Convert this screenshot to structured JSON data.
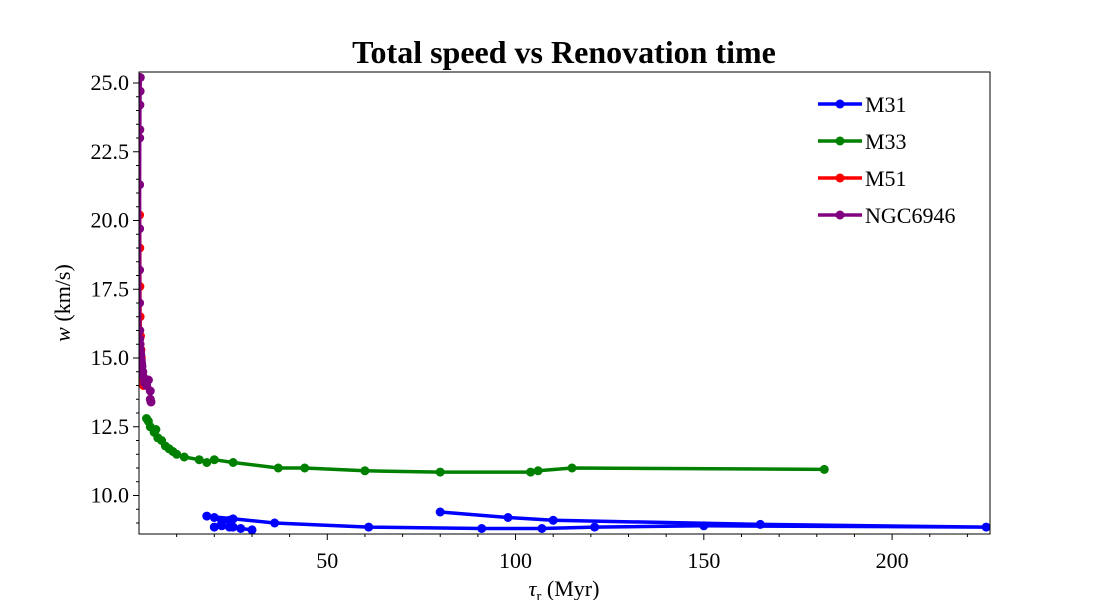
{
  "chart_data": {
    "type": "line",
    "title": "Total speed vs Renovation time",
    "xlabel_symbol": "τ",
    "xlabel_sub": "r",
    "xlabel_unit": " (Myr)",
    "ylabel_symbol": "w",
    "ylabel_unit": " (km/s)",
    "xlim": [
      0,
      226
    ],
    "ylim": [
      8.6,
      25.4
    ],
    "xticks": [
      50,
      100,
      150,
      200
    ],
    "yticks": [
      10.0,
      12.5,
      15.0,
      17.5,
      20.0,
      22.5,
      25.0
    ],
    "xtick_labels": [
      "50",
      "100",
      "150",
      "200"
    ],
    "ytick_labels": [
      "10.0",
      "12.5",
      "15.0",
      "17.5",
      "20.0",
      "22.5",
      "25.0"
    ],
    "legend_position": "top-right",
    "series": [
      {
        "name": "M31",
        "color": "#0000ff",
        "x": [
          30,
          27,
          25,
          24,
          22,
          20,
          22,
          24,
          25,
          20,
          18,
          36,
          61,
          91,
          107,
          121,
          150,
          225,
          165,
          110,
          98,
          80
        ],
        "y": [
          8.75,
          8.8,
          8.85,
          8.85,
          8.9,
          8.85,
          9.05,
          9.1,
          9.15,
          9.2,
          9.25,
          9.0,
          8.85,
          8.8,
          8.8,
          8.85,
          8.9,
          8.85,
          8.95,
          9.1,
          9.2,
          9.4
        ]
      },
      {
        "name": "M33",
        "color": "#008000",
        "x": [
          2,
          2.5,
          3,
          4,
          4.5,
          5,
          6,
          7,
          8,
          9,
          10,
          12,
          16,
          18,
          20,
          25,
          37,
          44,
          60,
          80,
          104,
          106,
          115,
          182
        ],
        "y": [
          12.8,
          12.7,
          12.5,
          12.3,
          12.4,
          12.1,
          12.0,
          11.8,
          11.7,
          11.6,
          11.5,
          11.4,
          11.3,
          11.2,
          11.3,
          11.2,
          11.0,
          11.0,
          10.9,
          10.85,
          10.85,
          10.9,
          11.0,
          10.95
        ]
      },
      {
        "name": "M51",
        "color": "#ff0000",
        "x": [
          0.15,
          0.2,
          0.25,
          0.3,
          0.4,
          0.5,
          0.6,
          0.7,
          0.8,
          0.9,
          1.0,
          1.2
        ],
        "y": [
          20.2,
          19.0,
          17.6,
          16.5,
          15.8,
          15.3,
          15.0,
          14.7,
          14.5,
          14.3,
          14.2,
          14.0
        ]
      },
      {
        "name": "NGC6946",
        "color": "#800080",
        "x": [
          0.35,
          0.3,
          0.25,
          0.2,
          0.18,
          0.15,
          0.15,
          0.15,
          0.15,
          0.2,
          0.2,
          0.3,
          0.35,
          0.4,
          0.5,
          0.6,
          0.7,
          0.8,
          1.0,
          1.2,
          1.5,
          2.0,
          2.5,
          3.0,
          3.2,
          3.0
        ],
        "y": [
          25.2,
          24.7,
          24.2,
          23.3,
          23.0,
          21.3,
          19.7,
          18.2,
          17.0,
          16.0,
          15.7,
          15.5,
          15.3,
          15.2,
          15.1,
          14.9,
          14.8,
          14.7,
          14.5,
          14.3,
          14.1,
          14.0,
          14.2,
          13.8,
          13.4,
          13.5
        ]
      }
    ]
  }
}
